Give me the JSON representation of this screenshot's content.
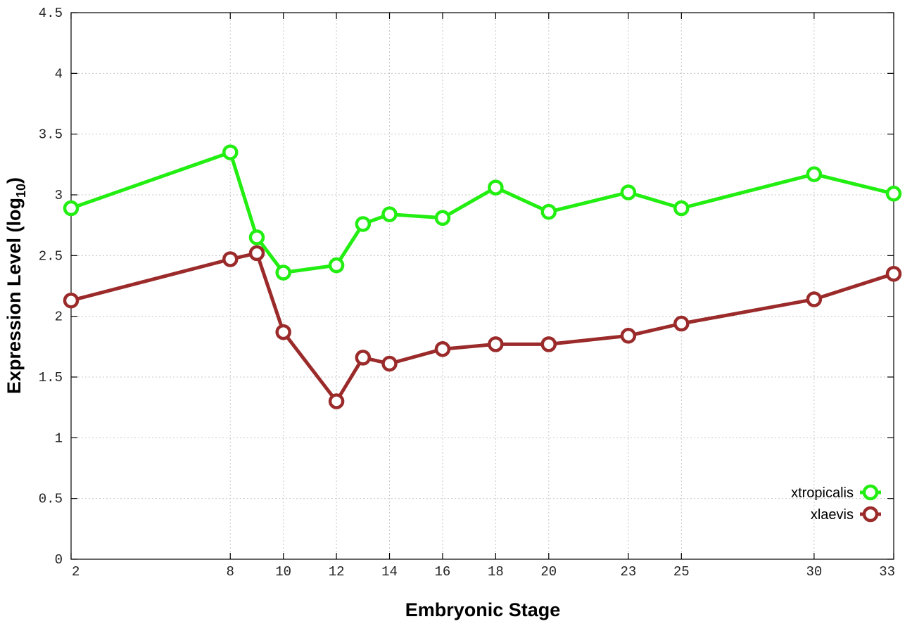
{
  "chart_data": {
    "type": "line",
    "title": "",
    "xlabel": "Embryonic Stage",
    "ylabel_main": "Expression Level (log",
    "ylabel_sub": "10",
    "ylabel_close": ")",
    "x": [
      2,
      8,
      9,
      10,
      12,
      13,
      14,
      16,
      18,
      20,
      23,
      25,
      30,
      33
    ],
    "x_ticks": [
      2,
      8,
      10,
      12,
      14,
      16,
      18,
      20,
      23,
      25,
      30,
      33
    ],
    "x_tick_labels": [
      "2",
      "8",
      "10",
      "12",
      "14",
      "16",
      "18",
      "20",
      "23",
      "25",
      "30",
      "33"
    ],
    "y_ticks": [
      0,
      0.5,
      1,
      1.5,
      2,
      2.5,
      3,
      3.5,
      4,
      4.5
    ],
    "y_tick_labels": [
      "0",
      "0.5",
      "1",
      "1.5",
      "2",
      "2.5",
      "3",
      "3.5",
      "4",
      "4.5"
    ],
    "xlim": [
      2,
      33
    ],
    "ylim": [
      0,
      4.5
    ],
    "grid": true,
    "legend_position": "bottom-right",
    "series": [
      {
        "name": "xtropicalis",
        "color": "#22ee11",
        "values": [
          2.89,
          3.35,
          2.65,
          2.36,
          2.42,
          2.76,
          2.84,
          2.81,
          3.06,
          2.86,
          3.02,
          2.89,
          3.17,
          3.01
        ]
      },
      {
        "name": "xlaevis",
        "color": "#9b2a2a",
        "values": [
          2.13,
          2.47,
          2.52,
          1.87,
          1.3,
          1.66,
          1.61,
          1.73,
          1.77,
          1.77,
          1.84,
          1.94,
          2.14,
          2.35
        ]
      }
    ]
  }
}
